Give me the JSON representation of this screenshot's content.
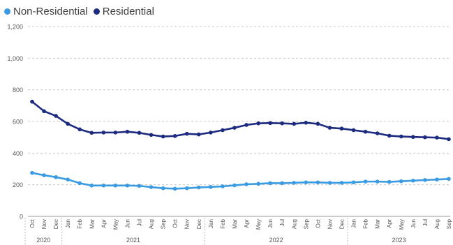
{
  "chart_data": {
    "type": "line",
    "title": "",
    "xlabel": "",
    "ylabel": "",
    "ylim": [
      0,
      1200
    ],
    "yticks": [
      0,
      200,
      400,
      600,
      800,
      1000,
      1200
    ],
    "ytick_labels": [
      "0",
      "200",
      "400",
      "600",
      "800",
      "1,000",
      "1,200"
    ],
    "grid": true,
    "legend_position": "top-left",
    "x": [
      "Oct",
      "Nov",
      "Dec",
      "Jan",
      "Feb",
      "Mar",
      "Apr",
      "May",
      "Jun",
      "Jul",
      "Aug",
      "Sep",
      "Oct",
      "Nov",
      "Dec",
      "Jan",
      "Feb",
      "Mar",
      "Apr",
      "May",
      "Jun",
      "Jul",
      "Aug",
      "Sep",
      "Oct",
      "Nov",
      "Dec",
      "Jan",
      "Feb",
      "Mar",
      "Apr",
      "May",
      "Jun",
      "Jul",
      "Aug",
      "Sep"
    ],
    "year_groups": [
      {
        "label": "2020",
        "start": 0,
        "end": 2
      },
      {
        "label": "2021",
        "start": 3,
        "end": 14
      },
      {
        "label": "2022",
        "start": 15,
        "end": 26
      },
      {
        "label": "2023",
        "start": 27,
        "end": 35
      }
    ],
    "series": [
      {
        "name": "Non-Residential",
        "color": "#3a9be3",
        "values": [
          275,
          260,
          248,
          233,
          210,
          195,
          195,
          195,
          195,
          193,
          185,
          178,
          175,
          178,
          183,
          186,
          190,
          196,
          203,
          206,
          210,
          210,
          212,
          215,
          215,
          212,
          212,
          215,
          220,
          220,
          218,
          222,
          226,
          230,
          233,
          237
        ]
      },
      {
        "name": "Residential",
        "color": "#1c2a80",
        "values": [
          725,
          665,
          635,
          585,
          550,
          528,
          530,
          530,
          535,
          528,
          515,
          505,
          508,
          522,
          518,
          530,
          545,
          560,
          578,
          588,
          590,
          588,
          585,
          592,
          585,
          560,
          555,
          545,
          535,
          525,
          510,
          505,
          502,
          500,
          498,
          488
        ]
      }
    ]
  }
}
